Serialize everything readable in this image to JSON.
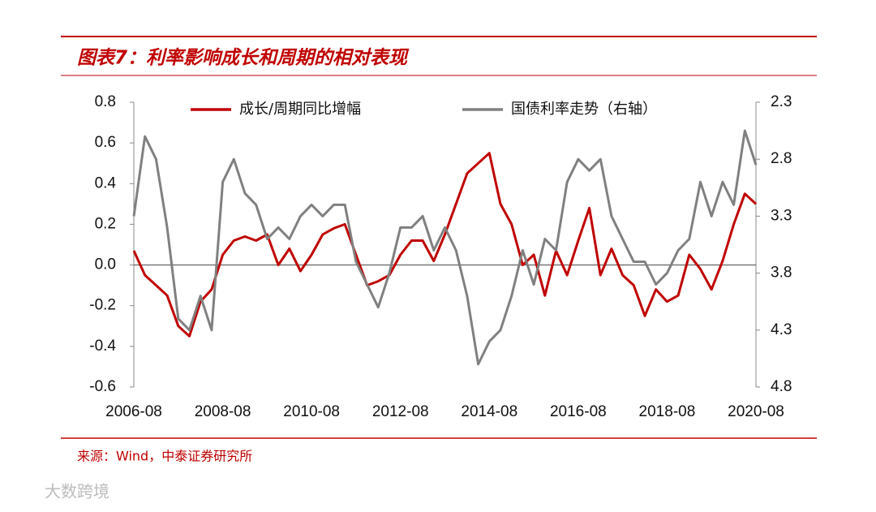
{
  "header": {
    "title": "图表7：利率影响成长和周期的相对表现"
  },
  "chart_data": {
    "type": "line",
    "categories": [
      "2006-08",
      null,
      null,
      null,
      null,
      null,
      null,
      null,
      "2008-08",
      null,
      null,
      null,
      null,
      null,
      null,
      null,
      "2010-08",
      null,
      null,
      null,
      null,
      null,
      null,
      null,
      "2012-08",
      null,
      null,
      null,
      null,
      null,
      null,
      null,
      "2014-08",
      null,
      null,
      null,
      null,
      null,
      null,
      null,
      "2016-08",
      null,
      null,
      null,
      null,
      null,
      null,
      null,
      "2018-08",
      null,
      null,
      null,
      null,
      null,
      null,
      null,
      "2020-08"
    ],
    "series": [
      {
        "name": "成长/周期同比增幅",
        "color": "#c00000",
        "values": [
          0.07,
          -0.05,
          -0.1,
          -0.15,
          -0.3,
          -0.35,
          -0.18,
          -0.12,
          0.05,
          0.12,
          0.14,
          0.12,
          0.15,
          0.0,
          0.08,
          -0.03,
          0.05,
          0.15,
          0.18,
          0.2,
          0.05,
          -0.1,
          -0.08,
          -0.05,
          0.05,
          0.12,
          0.12,
          0.02,
          0.15,
          0.3,
          0.45,
          0.5,
          0.55,
          0.3,
          0.2,
          0.0,
          0.05,
          -0.15,
          0.07,
          -0.05,
          0.12,
          0.28,
          -0.05,
          0.08,
          -0.05,
          -0.1,
          -0.25,
          -0.12,
          -0.18,
          -0.15,
          0.05,
          -0.02,
          -0.12,
          0.02,
          0.2,
          0.35,
          0.3
        ]
      },
      {
        "name": "国债利率走势（右轴）",
        "color": "#808080",
        "axis": "y2",
        "values": [
          3.3,
          2.6,
          2.8,
          3.4,
          4.2,
          4.3,
          4.0,
          4.3,
          3.0,
          2.8,
          3.1,
          3.2,
          3.5,
          3.4,
          3.5,
          3.3,
          3.2,
          3.3,
          3.2,
          3.2,
          3.7,
          3.9,
          4.1,
          3.8,
          3.4,
          3.4,
          3.3,
          3.6,
          3.4,
          3.6,
          4.0,
          4.6,
          4.4,
          4.3,
          4.0,
          3.6,
          3.9,
          3.5,
          3.6,
          3.0,
          2.8,
          2.9,
          2.8,
          3.3,
          3.5,
          3.7,
          3.7,
          3.9,
          3.8,
          3.6,
          3.5,
          3.0,
          3.3,
          3.0,
          3.2,
          2.55,
          2.85
        ]
      }
    ],
    "ylim": [
      -0.6,
      0.8
    ],
    "yticks": [
      -0.6,
      -0.4,
      -0.2,
      {
        "value": 0,
        "label": "0.0"
      },
      0.2,
      0.4,
      0.6,
      0.8
    ],
    "y2lim": [
      4.8,
      2.3
    ],
    "y2_inverted": true,
    "y2ticks": [
      2.3,
      2.8,
      3.3,
      3.8,
      4.3,
      4.8
    ],
    "legend": "top"
  },
  "footer": {
    "source": "来源：Wind，中泰证券研究所",
    "watermark": "大数跨境"
  }
}
